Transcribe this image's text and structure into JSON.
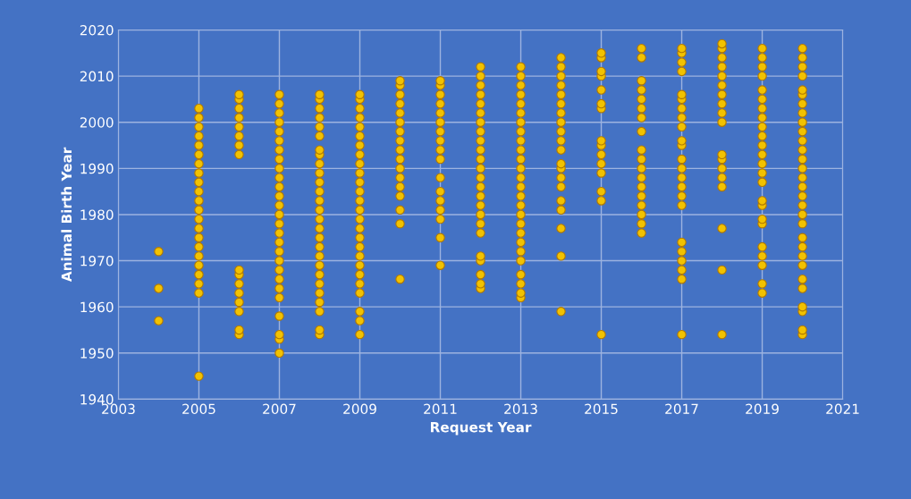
{
  "chart_data": {
    "type": "scatter",
    "xlabel": "Request Year",
    "ylabel": "Animal Birth Year",
    "xlim": [
      2003,
      2021
    ],
    "xticks": [
      2003,
      2005,
      2007,
      2009,
      2011,
      2013,
      2015,
      2017,
      2019,
      2021
    ],
    "ylim": [
      1940,
      2020
    ],
    "yticks": [
      1940,
      1950,
      1960,
      1970,
      1980,
      1990,
      2000,
      2010,
      2020
    ],
    "grid": true,
    "marker": "circle",
    "series": [
      {
        "color": "#f2c200",
        "x": [
          2004,
          2004,
          2004
        ],
        "values": [
          1957,
          1964,
          1972
        ]
      },
      {
        "color": "#f2c200",
        "x": [
          2005,
          2005,
          2005,
          2005,
          2005,
          2005,
          2005,
          2005,
          2005,
          2005,
          2005,
          2005,
          2005,
          2005,
          2005,
          2005,
          2005,
          2005,
          2005,
          2005,
          2005,
          2005
        ],
        "values": [
          1945,
          1963,
          1965,
          1967,
          1969,
          1971,
          1973,
          1975,
          1977,
          1979,
          1981,
          1983,
          1985,
          1987,
          1989,
          1991,
          1993,
          1995,
          1997,
          1999,
          2001,
          2003
        ]
      },
      {
        "color": "#f2c200",
        "x": [
          2006,
          2006,
          2006,
          2006,
          2006,
          2006,
          2006,
          2006,
          2006,
          2006,
          2006,
          2006,
          2006,
          2006,
          2006,
          2006
        ],
        "values": [
          1954,
          1955,
          1959,
          1961,
          1963,
          1965,
          1967,
          1968,
          1993,
          1995,
          1997,
          1999,
          2001,
          2003,
          2005,
          2006
        ]
      },
      {
        "color": "#f2c200",
        "x": [
          2007,
          2007,
          2007,
          2007,
          2007,
          2007,
          2007,
          2007,
          2007,
          2007,
          2007,
          2007,
          2007,
          2007,
          2007,
          2007,
          2007,
          2007,
          2007,
          2007,
          2007,
          2007,
          2007,
          2007,
          2007,
          2007,
          2007
        ],
        "values": [
          1950,
          1953,
          1954,
          1958,
          1962,
          1964,
          1966,
          1968,
          1970,
          1972,
          1974,
          1976,
          1978,
          1980,
          1982,
          1984,
          1986,
          1988,
          1990,
          1992,
          1994,
          1996,
          1998,
          2000,
          2002,
          2004,
          2006
        ]
      },
      {
        "color": "#f2c200",
        "x": [
          2008,
          2008,
          2008,
          2008,
          2008,
          2008,
          2008,
          2008,
          2008,
          2008,
          2008,
          2008,
          2008,
          2008,
          2008,
          2008,
          2008,
          2008,
          2008,
          2008,
          2008,
          2008,
          2008,
          2008,
          2008,
          2008,
          2008
        ],
        "values": [
          1954,
          1955,
          1959,
          1961,
          1963,
          1965,
          1967,
          1969,
          1971,
          1973,
          1975,
          1977,
          1979,
          1981,
          1983,
          1985,
          1987,
          1989,
          1991,
          1993,
          1994,
          1997,
          1999,
          2001,
          2003,
          2005,
          2006
        ]
      },
      {
        "color": "#f2c200",
        "x": [
          2009,
          2009,
          2009,
          2009,
          2009,
          2009,
          2009,
          2009,
          2009,
          2009,
          2009,
          2009,
          2009,
          2009,
          2009,
          2009,
          2009,
          2009,
          2009,
          2009,
          2009,
          2009,
          2009,
          2009,
          2009,
          2009
        ],
        "values": [
          1954,
          1957,
          1959,
          1963,
          1965,
          1967,
          1969,
          1971,
          1973,
          1975,
          1977,
          1979,
          1981,
          1983,
          1985,
          1987,
          1989,
          1991,
          1993,
          1995,
          1997,
          1999,
          2001,
          2003,
          2005,
          2006
        ]
      },
      {
        "color": "#f2c200",
        "x": [
          2010,
          2010,
          2010,
          2010,
          2010,
          2010,
          2010,
          2010,
          2010,
          2010,
          2010,
          2010,
          2010,
          2010,
          2010,
          2010,
          2010
        ],
        "values": [
          1966,
          1978,
          1981,
          1984,
          1986,
          1988,
          1990,
          1992,
          1994,
          1996,
          1998,
          2000,
          2002,
          2004,
          2006,
          2008,
          2009
        ]
      },
      {
        "color": "#f2c200",
        "x": [
          2011,
          2011,
          2011,
          2011,
          2011,
          2011,
          2011,
          2011,
          2011,
          2011,
          2011,
          2011,
          2011,
          2011,
          2011,
          2011,
          2011
        ],
        "values": [
          1969,
          1975,
          1979,
          1981,
          1983,
          1985,
          1988,
          1992,
          1994,
          1996,
          1998,
          2000,
          2002,
          2004,
          2006,
          2008,
          2009
        ]
      },
      {
        "color": "#f2c200",
        "x": [
          2012,
          2012,
          2012,
          2012,
          2012,
          2012,
          2012,
          2012,
          2012,
          2012,
          2012,
          2012,
          2012,
          2012,
          2012,
          2012,
          2012,
          2012,
          2012,
          2012,
          2012,
          2012,
          2012,
          2012
        ],
        "values": [
          1964,
          1965,
          1967,
          1970,
          1971,
          1976,
          1978,
          1980,
          1982,
          1984,
          1986,
          1988,
          1990,
          1992,
          1994,
          1996,
          1998,
          2000,
          2002,
          2004,
          2006,
          2008,
          2010,
          2012
        ]
      },
      {
        "color": "#f2c200",
        "x": [
          2013,
          2013,
          2013,
          2013,
          2013,
          2013,
          2013,
          2013,
          2013,
          2013,
          2013,
          2013,
          2013,
          2013,
          2013,
          2013,
          2013,
          2013,
          2013,
          2013,
          2013,
          2013,
          2013,
          2013,
          2013,
          2013
        ],
        "values": [
          1962,
          1963,
          1965,
          1967,
          1970,
          1972,
          1974,
          1976,
          1978,
          1980,
          1982,
          1984,
          1986,
          1988,
          1990,
          1992,
          1994,
          1996,
          1998,
          2000,
          2002,
          2004,
          2006,
          2008,
          2010,
          2012
        ]
      },
      {
        "color": "#f2c200",
        "x": [
          2014,
          2014,
          2014,
          2014,
          2014,
          2014,
          2014,
          2014,
          2014,
          2014,
          2014,
          2014,
          2014,
          2014,
          2014,
          2014,
          2014,
          2014,
          2014,
          2014
        ],
        "values": [
          1959,
          1971,
          1977,
          1981,
          1983,
          1986,
          1988,
          1990,
          1991,
          1994,
          1996,
          1998,
          2000,
          2002,
          2004,
          2006,
          2008,
          2010,
          2012,
          2014
        ]
      },
      {
        "color": "#f2c200",
        "x": [
          2015,
          2015,
          2015,
          2015,
          2015,
          2015,
          2015,
          2015,
          2015,
          2015,
          2015,
          2015,
          2015,
          2015,
          2015
        ],
        "values": [
          1954,
          1983,
          1985,
          1989,
          1991,
          1993,
          1995,
          1996,
          2003,
          2004,
          2007,
          2010,
          2011,
          2014,
          2015
        ]
      },
      {
        "color": "#f2c200",
        "x": [
          2016,
          2016,
          2016,
          2016,
          2016,
          2016,
          2016,
          2016,
          2016,
          2016,
          2016,
          2016,
          2016,
          2016,
          2016,
          2016,
          2016,
          2016
        ],
        "values": [
          1976,
          1978,
          1980,
          1982,
          1984,
          1986,
          1988,
          1990,
          1992,
          1994,
          1998,
          2001,
          2003,
          2005,
          2007,
          2009,
          2014,
          2016
        ]
      },
      {
        "color": "#f2c200",
        "x": [
          2017,
          2017,
          2017,
          2017,
          2017,
          2017,
          2017,
          2017,
          2017,
          2017,
          2017,
          2017,
          2017,
          2017,
          2017,
          2017,
          2017,
          2017,
          2017,
          2017,
          2017,
          2017,
          2017
        ],
        "values": [
          1954,
          1966,
          1968,
          1970,
          1972,
          1974,
          1982,
          1984,
          1986,
          1988,
          1990,
          1992,
          1995,
          1996,
          1999,
          2001,
          2003,
          2005,
          2006,
          2011,
          2013,
          2015,
          2016
        ]
      },
      {
        "color": "#f2c200",
        "x": [
          2018,
          2018,
          2018,
          2018,
          2018,
          2018,
          2018,
          2018,
          2018,
          2018,
          2018,
          2018,
          2018,
          2018,
          2018,
          2018,
          2018,
          2018
        ],
        "values": [
          1954,
          1968,
          1977,
          1986,
          1988,
          1990,
          1992,
          1993,
          2000,
          2002,
          2004,
          2006,
          2008,
          2010,
          2012,
          2014,
          2016,
          2017
        ]
      },
      {
        "color": "#f2c200",
        "x": [
          2019,
          2019,
          2019,
          2019,
          2019,
          2019,
          2019,
          2019,
          2019,
          2019,
          2019,
          2019,
          2019,
          2019,
          2019,
          2019,
          2019,
          2019,
          2019,
          2019,
          2019,
          2019,
          2019,
          2019
        ],
        "values": [
          1963,
          1965,
          1969,
          1971,
          1973,
          1978,
          1979,
          1982,
          1983,
          1987,
          1989,
          1991,
          1993,
          1995,
          1997,
          1999,
          2001,
          2003,
          2005,
          2007,
          2010,
          2012,
          2014,
          2016
        ]
      },
      {
        "color": "#f2c200",
        "x": [
          2020,
          2020,
          2020,
          2020,
          2020,
          2020,
          2020,
          2020,
          2020,
          2020,
          2020,
          2020,
          2020,
          2020,
          2020,
          2020,
          2020,
          2020,
          2020,
          2020,
          2020,
          2020,
          2020,
          2020,
          2020,
          2020,
          2020,
          2020,
          2020,
          2020
        ],
        "values": [
          1954,
          1955,
          1959,
          1960,
          1964,
          1966,
          1969,
          1971,
          1973,
          1975,
          1978,
          1980,
          1982,
          1984,
          1986,
          1988,
          1990,
          1992,
          1994,
          1996,
          1998,
          2000,
          2002,
          2004,
          2006,
          2007,
          2010,
          2012,
          2014,
          2016
        ]
      }
    ]
  }
}
